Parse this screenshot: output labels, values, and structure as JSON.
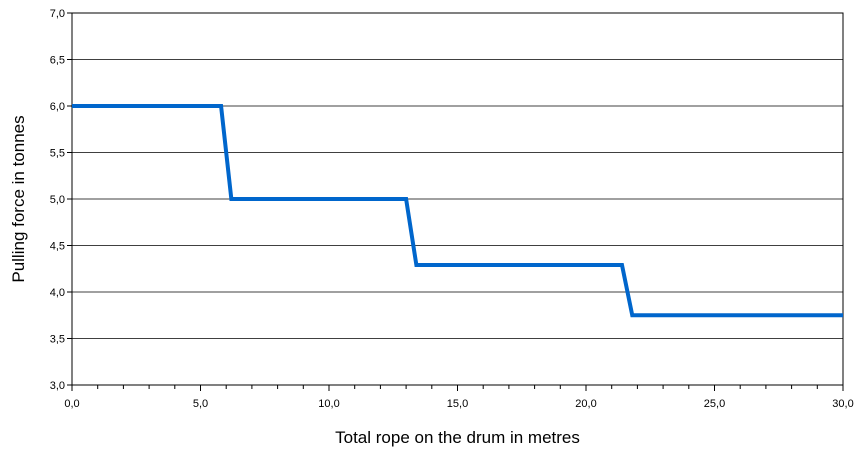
{
  "chart_data": {
    "type": "line",
    "title": "",
    "xlabel": "Total rope on the drum in metres",
    "ylabel": "Pulling force in tonnes",
    "xlim": [
      0,
      30
    ],
    "ylim": [
      3.0,
      7.0
    ],
    "x_ticks": [
      "0,0",
      "5,0",
      "10,0",
      "15,0",
      "20,0",
      "25,0",
      "30,0"
    ],
    "y_ticks": [
      "3,0",
      "3,5",
      "4,0",
      "4,5",
      "5,0",
      "5,5",
      "6,0",
      "6,5",
      "7,0"
    ],
    "grid": "horizontal",
    "line_color": "#0066cc",
    "series": [
      {
        "x": [
          0,
          5.8,
          6.2,
          13.0,
          13.4,
          21.4,
          21.8,
          30.0
        ],
        "y": [
          6.0,
          6.0,
          5.0,
          5.0,
          4.29,
          4.29,
          3.75,
          3.75
        ]
      }
    ]
  }
}
